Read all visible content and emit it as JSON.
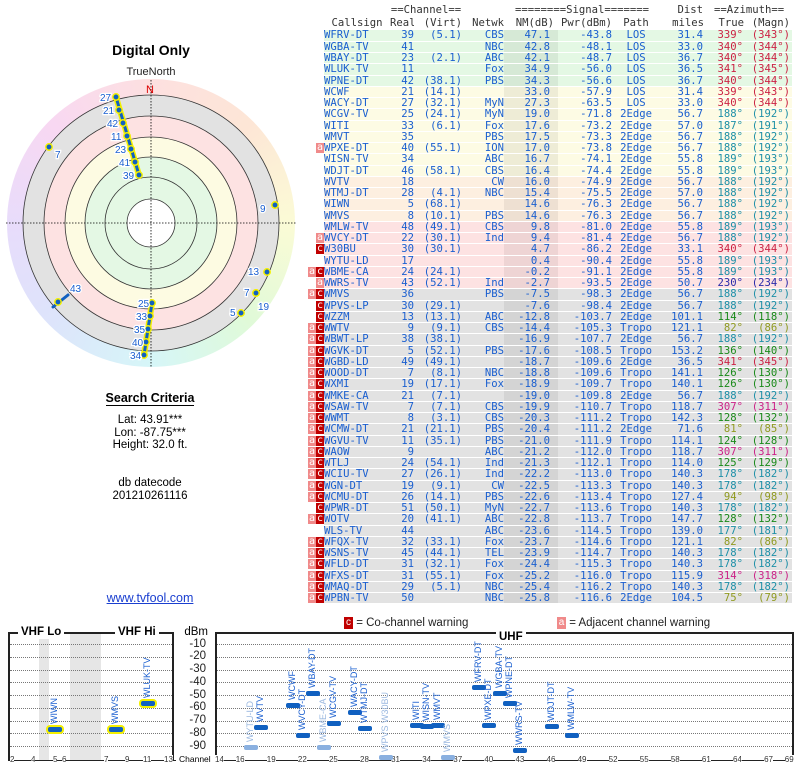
{
  "left": {
    "title": "Digital Only",
    "true_north": "TrueNorth",
    "north": "N",
    "criteria_title": "Search Criteria",
    "lat": "Lat: 43.91***",
    "lon": "Lon: -87.75***",
    "height": "Height: 32.0 ft.",
    "db_label": "db datecode",
    "db_value": "201210261116",
    "link": "www.tvfool.com"
  },
  "radar": {
    "points": [
      {
        "label": "27",
        "az": 340,
        "nm": 27.3
      },
      {
        "label": "21",
        "az": 339,
        "nm": 33.0
      },
      {
        "label": "42",
        "az": 340,
        "nm": 34.3
      },
      {
        "label": "11",
        "az": 341,
        "nm": 34.9
      },
      {
        "label": "23",
        "az": 340,
        "nm": 42.1
      },
      {
        "label": "41",
        "az": 340,
        "nm": 42.8
      },
      {
        "label": "39",
        "az": 339,
        "nm": 47.1
      },
      {
        "label": "7",
        "az": 307,
        "nm": -19.9
      },
      {
        "label": "9",
        "az": 82,
        "nm": -14.4
      },
      {
        "label": "13",
        "az": 114,
        "nm": -12.8
      },
      {
        "label": "7",
        "az": 126,
        "nm": -18.8
      },
      {
        "label": "19",
        "az": 126,
        "nm": -18.9
      },
      {
        "label": "5",
        "az": 136,
        "nm": -17.6
      },
      {
        "label": "43",
        "az": 230,
        "nm": -2.7
      },
      {
        "label": "25",
        "az": 188,
        "nm": 19.0
      },
      {
        "label": "33",
        "az": 187,
        "nm": 17.6
      },
      {
        "label": "35",
        "az": 188,
        "nm": 17.5
      },
      {
        "label": "40",
        "az": 188,
        "nm": 17.0
      },
      {
        "label": "34",
        "az": 189,
        "nm": 16.7
      }
    ],
    "marker_color": "#1060c0",
    "highlight_color": "#f4f000"
  },
  "table": {
    "header1": [
      "",
      "",
      "==Channel==",
      "",
      "",
      "========Signal=======",
      "",
      "",
      "Dist",
      "==Azimuth==",
      ""
    ],
    "header2": [
      "",
      "Callsign",
      "Real",
      "(Virt)",
      "Netwk",
      "NM(dB)",
      "Pwr(dBm)",
      "Path",
      "miles",
      "True",
      "(Magn)"
    ],
    "band_colors": {
      "green": "#e4f8e4",
      "yellow": "#fdfbe4",
      "peach": "#fdefe0",
      "pink": "#fde2e2",
      "gray": "#e2e2e2"
    },
    "az_colors": {
      "red": "#cc2244",
      "teal": "#1e90a8",
      "blue": "#2a2aaa",
      "green": "#1a8a1a",
      "olive": "#909a20",
      "magenta": "#cc2288"
    },
    "rows": [
      [
        "",
        "WFRV-DT",
        "39",
        "(5.1)",
        "CBS",
        "47.1",
        "-43.8",
        "LOS",
        "31.4",
        "339°",
        "(343°)",
        "green",
        "red"
      ],
      [
        "",
        "WGBA-TV",
        "41",
        "",
        "NBC",
        "42.8",
        "-48.1",
        "LOS",
        "33.0",
        "340°",
        "(344°)",
        "green",
        "red"
      ],
      [
        "",
        "WBAY-DT",
        "23",
        "(2.1)",
        "ABC",
        "42.1",
        "-48.7",
        "LOS",
        "36.7",
        "340°",
        "(344°)",
        "green",
        "red"
      ],
      [
        "",
        "WLUK-TV",
        "11",
        "",
        "Fox",
        "34.9",
        "-56.0",
        "LOS",
        "36.5",
        "341°",
        "(345°)",
        "green",
        "red"
      ],
      [
        "",
        "WPNE-DT",
        "42",
        "(38.1)",
        "PBS",
        "34.3",
        "-56.6",
        "LOS",
        "36.7",
        "340°",
        "(344°)",
        "green",
        "red"
      ],
      [
        "",
        "WCWF",
        "21",
        "(14.1)",
        "",
        "33.0",
        "-57.9",
        "LOS",
        "31.4",
        "339°",
        "(343°)",
        "yellow",
        "red"
      ],
      [
        "",
        "WACY-DT",
        "27",
        "(32.1)",
        "MyN",
        "27.3",
        "-63.5",
        "LOS",
        "33.0",
        "340°",
        "(344°)",
        "yellow",
        "red"
      ],
      [
        "",
        "WCGV-TV",
        "25",
        "(24.1)",
        "MyN",
        "19.0",
        "-71.8",
        "2Edge",
        "56.7",
        "188°",
        "(192°)",
        "yellow",
        "teal"
      ],
      [
        "",
        "WITI",
        "33",
        "(6.1)",
        "Fox",
        "17.6",
        "-73.2",
        "2Edge",
        "57.0",
        "187°",
        "(191°)",
        "yellow",
        "teal"
      ],
      [
        "",
        "WMVT",
        "35",
        "",
        "PBS",
        "17.5",
        "-73.3",
        "2Edge",
        "56.7",
        "188°",
        "(192°)",
        "yellow",
        "teal"
      ],
      [
        "a",
        "WPXE-DT",
        "40",
        "(55.1)",
        "ION",
        "17.0",
        "-73.8",
        "2Edge",
        "56.7",
        "188°",
        "(192°)",
        "yellow",
        "teal"
      ],
      [
        "",
        "WISN-TV",
        "34",
        "",
        "ABC",
        "16.7",
        "-74.1",
        "2Edge",
        "55.8",
        "189°",
        "(193°)",
        "yellow",
        "teal"
      ],
      [
        "",
        "WDJT-DT",
        "46",
        "(58.1)",
        "CBS",
        "16.4",
        "-74.4",
        "2Edge",
        "55.8",
        "189°",
        "(193°)",
        "yellow",
        "teal"
      ],
      [
        "",
        "WVTV",
        "18",
        "",
        "CW",
        "16.0",
        "-74.9",
        "2Edge",
        "56.7",
        "188°",
        "(192°)",
        "peach",
        "teal"
      ],
      [
        "",
        "WTMJ-DT",
        "28",
        "(4.1)",
        "NBC",
        "15.4",
        "-75.5",
        "2Edge",
        "57.0",
        "188°",
        "(192°)",
        "peach",
        "teal"
      ],
      [
        "",
        "WIWN",
        "5",
        "(68.1)",
        "",
        "14.6",
        "-76.3",
        "2Edge",
        "56.7",
        "188°",
        "(192°)",
        "peach",
        "teal"
      ],
      [
        "",
        "WMVS",
        "8",
        "(10.1)",
        "PBS",
        "14.6",
        "-76.3",
        "2Edge",
        "56.7",
        "188°",
        "(192°)",
        "peach",
        "teal"
      ],
      [
        "",
        "WMLW-TV",
        "48",
        "(49.1)",
        "CBS",
        "9.8",
        "-81.0",
        "2Edge",
        "55.8",
        "189°",
        "(193°)",
        "pink",
        "teal"
      ],
      [
        "a",
        "WVCY-DT",
        "22",
        "(30.1)",
        "Ind",
        "9.4",
        "-81.4",
        "2Edge",
        "56.7",
        "188°",
        "(192°)",
        "pink",
        "teal"
      ],
      [
        "c",
        "W30BU",
        "30",
        "(30.1)",
        "",
        "4.7",
        "-86.2",
        "2Edge",
        "33.1",
        "340°",
        "(344°)",
        "pink",
        "red"
      ],
      [
        "",
        "WYTU-LD",
        "17",
        "",
        "",
        "0.4",
        "-90.4",
        "2Edge",
        "55.8",
        "189°",
        "(193°)",
        "pink",
        "teal"
      ],
      [
        "ac",
        "WBME-CA",
        "24",
        "(24.1)",
        "",
        "-0.2",
        "-91.1",
        "2Edge",
        "55.8",
        "189°",
        "(193°)",
        "pink",
        "teal"
      ],
      [
        "a",
        "WWRS-TV",
        "43",
        "(52.1)",
        "Ind",
        "-2.7",
        "-93.5",
        "2Edge",
        "50.7",
        "230°",
        "(234°)",
        "pink",
        "blue"
      ],
      [
        "ac",
        "WMVS",
        "36",
        "",
        "PBS",
        "-7.5",
        "-98.3",
        "2Edge",
        "56.7",
        "188°",
        "(192°)",
        "gray",
        "teal"
      ],
      [
        "c",
        "WPVS-LP",
        "30",
        "(29.1)",
        "",
        "-7.6",
        "-98.4",
        "2Edge",
        "56.7",
        "188°",
        "(192°)",
        "gray",
        "teal"
      ],
      [
        "c",
        "WZZM",
        "13",
        "(13.1)",
        "ABC",
        "-12.8",
        "-103.7",
        "2Edge",
        "101.1",
        "114°",
        "(118°)",
        "gray",
        "green"
      ],
      [
        "ac",
        "WWTV",
        "9",
        "(9.1)",
        "CBS",
        "-14.4",
        "-105.3",
        "Tropo",
        "121.1",
        "82°",
        "(86°)",
        "gray",
        "olive"
      ],
      [
        "ac",
        "WBWT-LP",
        "38",
        "(38.1)",
        "",
        "-16.9",
        "-107.7",
        "2Edge",
        "56.7",
        "188°",
        "(192°)",
        "gray",
        "teal"
      ],
      [
        "ac",
        "WGVK-DT",
        "5",
        "(52.1)",
        "PBS",
        "-17.6",
        "-108.5",
        "Tropo",
        "153.2",
        "136°",
        "(140°)",
        "gray",
        "green"
      ],
      [
        "ac",
        "WGBD-LD",
        "49",
        "(49.1)",
        "",
        "-18.7",
        "-109.6",
        "2Edge",
        "36.5",
        "341°",
        "(345°)",
        "gray",
        "red"
      ],
      [
        "ac",
        "WOOD-DT",
        "7",
        "(8.1)",
        "NBC",
        "-18.8",
        "-109.6",
        "Tropo",
        "141.1",
        "126°",
        "(130°)",
        "gray",
        "green"
      ],
      [
        "ac",
        "WXMI",
        "19",
        "(17.1)",
        "Fox",
        "-18.9",
        "-109.7",
        "Tropo",
        "140.1",
        "126°",
        "(130°)",
        "gray",
        "green"
      ],
      [
        "ac",
        "WMKE-CA",
        "21",
        "(7.1)",
        "",
        "-19.0",
        "-109.8",
        "2Edge",
        "56.7",
        "188°",
        "(192°)",
        "gray",
        "teal"
      ],
      [
        "ac",
        "WSAW-TV",
        "7",
        "(7.1)",
        "CBS",
        "-19.9",
        "-110.7",
        "Tropo",
        "118.7",
        "307°",
        "(311°)",
        "gray",
        "magenta"
      ],
      [
        "ac",
        "WWMT",
        "8",
        "(3.1)",
        "CBS",
        "-20.3",
        "-111.2",
        "Tropo",
        "142.3",
        "128°",
        "(132°)",
        "gray",
        "green"
      ],
      [
        "ac",
        "WCMW-DT",
        "21",
        "(21.1)",
        "PBS",
        "-20.4",
        "-111.2",
        "2Edge",
        "71.6",
        "81°",
        "(85°)",
        "gray",
        "olive"
      ],
      [
        "ac",
        "WGVU-TV",
        "11",
        "(35.1)",
        "PBS",
        "-21.0",
        "-111.9",
        "Tropo",
        "114.1",
        "124°",
        "(128°)",
        "gray",
        "green"
      ],
      [
        "ac",
        "WAOW",
        "9",
        "",
        "ABC",
        "-21.2",
        "-112.0",
        "Tropo",
        "118.7",
        "307°",
        "(311°)",
        "gray",
        "magenta"
      ],
      [
        "ac",
        "WTLJ",
        "24",
        "(54.1)",
        "Ind",
        "-21.3",
        "-112.1",
        "Tropo",
        "114.0",
        "125°",
        "(129°)",
        "gray",
        "green"
      ],
      [
        "ac",
        "WCIU-TV",
        "27",
        "(26.1)",
        "Ind",
        "-22.2",
        "-113.0",
        "Tropo",
        "140.3",
        "178°",
        "(182°)",
        "gray",
        "teal"
      ],
      [
        "ac",
        "WGN-DT",
        "19",
        "(9.1)",
        "CW",
        "-22.5",
        "-113.3",
        "Tropo",
        "140.3",
        "178°",
        "(182°)",
        "gray",
        "teal"
      ],
      [
        "ac",
        "WCMU-DT",
        "26",
        "(14.1)",
        "PBS",
        "-22.6",
        "-113.4",
        "Tropo",
        "127.4",
        "94°",
        "(98°)",
        "gray",
        "olive"
      ],
      [
        "c",
        "WPWR-DT",
        "51",
        "(50.1)",
        "MyN",
        "-22.7",
        "-113.6",
        "Tropo",
        "140.3",
        "178°",
        "(182°)",
        "gray",
        "teal"
      ],
      [
        "ac",
        "WOTV",
        "20",
        "(41.1)",
        "ABC",
        "-22.8",
        "-113.7",
        "Tropo",
        "147.7",
        "128°",
        "(132°)",
        "gray",
        "green"
      ],
      [
        "",
        "WLS-TV",
        "44",
        "",
        "ABC",
        "-23.6",
        "-114.5",
        "Tropo",
        "139.0",
        "177°",
        "(181°)",
        "gray",
        "teal"
      ],
      [
        "ac",
        "WFQX-TV",
        "32",
        "(33.1)",
        "Fox",
        "-23.7",
        "-114.6",
        "Tropo",
        "121.1",
        "82°",
        "(86°)",
        "gray",
        "olive"
      ],
      [
        "ac",
        "WSNS-TV",
        "45",
        "(44.1)",
        "TEL",
        "-23.9",
        "-114.7",
        "Tropo",
        "140.3",
        "178°",
        "(182°)",
        "gray",
        "teal"
      ],
      [
        "ac",
        "WFLD-DT",
        "31",
        "(32.1)",
        "Fox",
        "-24.4",
        "-115.3",
        "Tropo",
        "140.3",
        "178°",
        "(182°)",
        "gray",
        "teal"
      ],
      [
        "ac",
        "WFXS-DT",
        "31",
        "(55.1)",
        "Fox",
        "-25.2",
        "-116.0",
        "Tropo",
        "115.9",
        "314°",
        "(318°)",
        "gray",
        "magenta"
      ],
      [
        "ac",
        "WMAQ-DT",
        "29",
        "(5.1)",
        "NBC",
        "-25.4",
        "-116.2",
        "Tropo",
        "140.3",
        "178°",
        "(182°)",
        "gray",
        "teal"
      ],
      [
        "ac",
        "WPBN-TV",
        "50",
        "",
        "NBC",
        "-25.8",
        "-116.6",
        "2Edge",
        "104.5",
        "75°",
        "(79°)",
        "gray",
        "olive"
      ]
    ]
  },
  "legend": {
    "co_flag": "c",
    "co_text": "= Co-channel warning",
    "adj_flag": "a",
    "adj_text": "= Adjacent channel warning"
  },
  "chart_data": {
    "type": "scatter",
    "ylabel": "dBm",
    "xlabel": "Channel",
    "ylim": [
      -100,
      0
    ],
    "yticks": [
      "-10",
      "-20",
      "-30",
      "-40",
      "-50",
      "-60",
      "-70",
      "-80",
      "-90"
    ],
    "vhf_lo_title": "VHF Lo",
    "vhf_hi_title": "VHF Hi",
    "uhf_title": "UHF",
    "vhf_ticks": [
      "2",
      "4",
      "5",
      "6",
      "7",
      "9",
      "11",
      "13"
    ],
    "uhf_ticks": [
      "14",
      "16",
      "19",
      "22",
      "25",
      "28",
      "31",
      "34",
      "37",
      "40",
      "43",
      "46",
      "49",
      "52",
      "55",
      "58",
      "61",
      "64",
      "67",
      "69"
    ],
    "points": [
      {
        "name": "WIWN",
        "ch": 5,
        "dbm": -76.3,
        "band": "vhf"
      },
      {
        "name": "WMVS",
        "ch": 8,
        "dbm": -76.3,
        "band": "vhf"
      },
      {
        "name": "WLUK-TV",
        "ch": 11,
        "dbm": -56.0,
        "band": "vhf"
      },
      {
        "name": "WYTU-LD",
        "ch": 17,
        "dbm": -90.4,
        "faint": true
      },
      {
        "name": "WVTV",
        "ch": 18,
        "dbm": -74.9
      },
      {
        "name": "WCWF",
        "ch": 21,
        "dbm": -57.9
      },
      {
        "name": "WVCY-DT",
        "ch": 22,
        "dbm": -81.4
      },
      {
        "name": "WBAY-DT",
        "ch": 23,
        "dbm": -48.7
      },
      {
        "name": "WBME-CA",
        "ch": 24,
        "dbm": -91.1,
        "faint": true
      },
      {
        "name": "WCGV-TV",
        "ch": 25,
        "dbm": -71.8
      },
      {
        "name": "WACY-DT",
        "ch": 27,
        "dbm": -63.5
      },
      {
        "name": "WTMJ-DT",
        "ch": 28,
        "dbm": -75.5
      },
      {
        "name": "WPVS W30BU",
        "ch": 30,
        "dbm": -98.4,
        "faint": true
      },
      {
        "name": "WITI",
        "ch": 33,
        "dbm": -73.2
      },
      {
        "name": "WISN-TV",
        "ch": 34,
        "dbm": -74.1
      },
      {
        "name": "WMVT",
        "ch": 35,
        "dbm": -73.3
      },
      {
        "name": "WMVS",
        "ch": 36,
        "dbm": -98.3,
        "faint": true
      },
      {
        "name": "WFRV-DT",
        "ch": 39,
        "dbm": -43.8
      },
      {
        "name": "WPXE-DT",
        "ch": 40,
        "dbm": -73.8
      },
      {
        "name": "WGBA-TV",
        "ch": 41,
        "dbm": -48.1
      },
      {
        "name": "WPNE-DT",
        "ch": 42,
        "dbm": -56.6
      },
      {
        "name": "WWRS-TV",
        "ch": 43,
        "dbm": -93.5
      },
      {
        "name": "WDJT-DT",
        "ch": 46,
        "dbm": -74.4
      },
      {
        "name": "WMLW-TV",
        "ch": 48,
        "dbm": -81.0
      }
    ]
  }
}
